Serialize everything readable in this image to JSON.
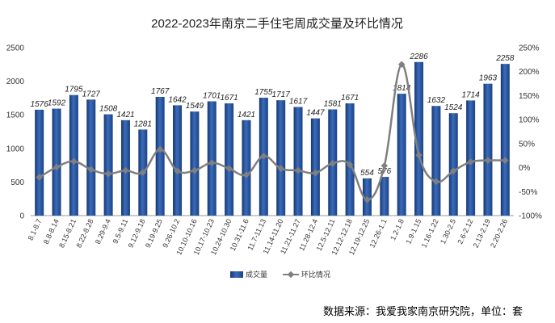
{
  "chart_data": {
    "type": "bar",
    "title": "2022-2023年南京二手住宅周成交量及环比情况",
    "categories": [
      "8.1-8.7",
      "8.8-8.14",
      "8.15-8.21",
      "8.22-8.28",
      "8.29-9.4",
      "9.5-9.11",
      "9.12-9.18",
      "9.19-9.25",
      "9.26-10.2",
      "10.10-10.16",
      "10.17-10.23",
      "10.24-10.30",
      "10.31-11.6",
      "11.7-11.13",
      "11.14-11.20",
      "11.21-11.27",
      "11.28-12.4",
      "12.5-12.11",
      "12.12-12.18",
      "12.19-12.25",
      "12.26-1.1",
      "1.2-1.8",
      "1.9-1.15",
      "1.16-1.22",
      "1.30-2.5",
      "2.6-2.12",
      "2.13-2.19",
      "2.20-2.26"
    ],
    "series": [
      {
        "name": "成交量",
        "type": "bar",
        "axis": "left",
        "color": "#2f5ea8",
        "values": [
          1576,
          1592,
          1795,
          1727,
          1508,
          1421,
          1281,
          1767,
          1642,
          1549,
          1701,
          1671,
          1421,
          1755,
          1717,
          1617,
          1447,
          1581,
          1671,
          554,
          576,
          1814,
          2286,
          1632,
          1524,
          1714,
          1963,
          2258
        ]
      },
      {
        "name": "环比情况",
        "type": "line",
        "axis": "right",
        "color": "#808080",
        "values": [
          -20,
          1,
          13,
          -4,
          -13,
          -6,
          -10,
          38,
          -7,
          -6,
          10,
          -2,
          -15,
          24,
          -2,
          -6,
          -11,
          9,
          6,
          -67,
          4,
          215,
          26,
          -29,
          -7,
          12,
          15,
          15
        ]
      }
    ],
    "yleft": {
      "lim": [
        0,
        2500
      ],
      "ticks": [
        "0",
        "500",
        "1000",
        "1500",
        "2000",
        "2500"
      ]
    },
    "yright": {
      "lim": [
        -100,
        250
      ],
      "ticks": [
        "-100%",
        "-50%",
        "0%",
        "50%",
        "100%",
        "150%",
        "200%",
        "250%"
      ]
    },
    "legend_position": "bottom",
    "grid": false
  },
  "source_note": "数据来源：我爱我家南京研究院，单位：套"
}
